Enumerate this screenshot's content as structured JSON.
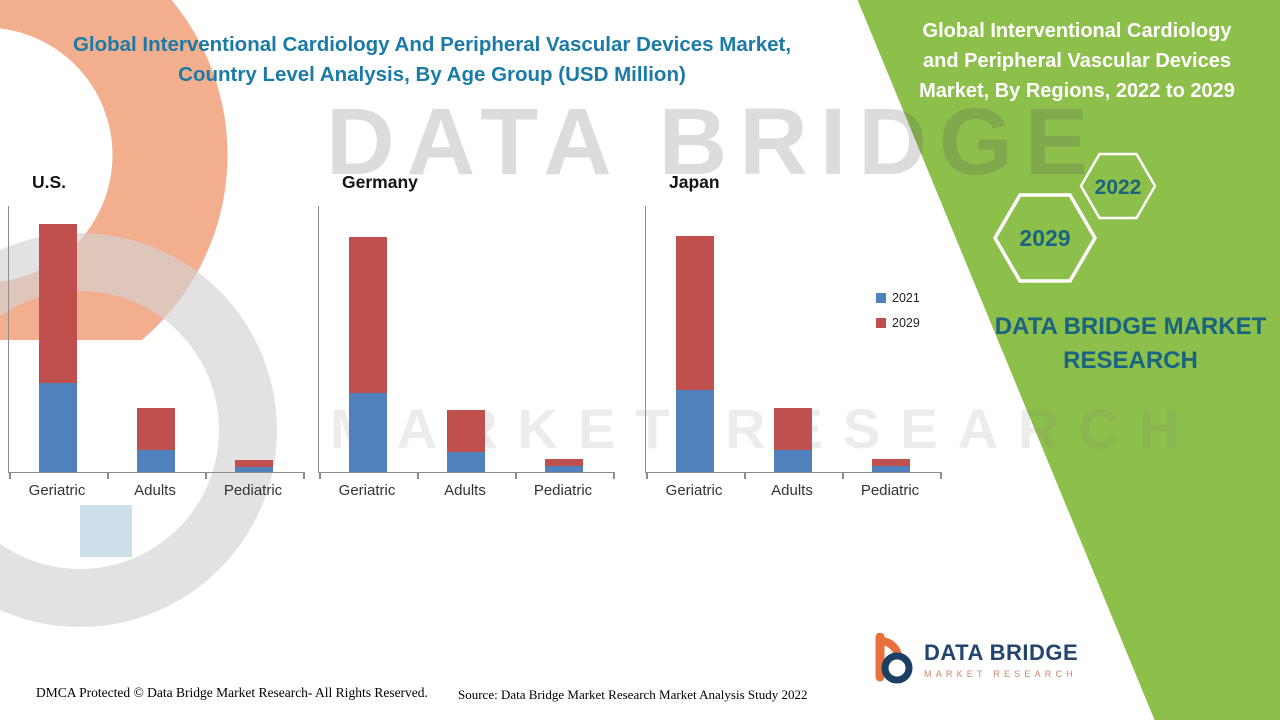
{
  "titles": {
    "left": "Global Interventional Cardiology And Peripheral Vascular Devices Market, Country Level Analysis, By Age Group (USD Million)",
    "left_lines": [
      "Global Interventional Cardiology And Peripheral Vascular Devices Market,",
      "Country Level Analysis, By Age Group (USD Million)"
    ],
    "right": "Global Interventional Cardiology and Peripheral Vascular Devices Market, By Regions, 2022 to 2029",
    "right_lines": [
      "Global Interventional Cardiology",
      "and Peripheral Vascular Devices",
      "Market, By Regions, 2022 to 2029"
    ]
  },
  "right_panel": {
    "panel_color": "#8dbf4b",
    "accent_color": "#19657f",
    "hexagons": [
      {
        "label": "2022"
      },
      {
        "label": "2029"
      }
    ],
    "brand": "DATA BRIDGE MARKET RESEARCH"
  },
  "legend": {
    "items": [
      {
        "label": "2021",
        "color": "#4f81bd"
      },
      {
        "label": "2029",
        "color": "#c0504d"
      }
    ]
  },
  "chart_data": [
    {
      "type": "bar",
      "stacked": true,
      "title": "U.S.",
      "categories": [
        "Geriatric",
        "Adults",
        "Pediatric"
      ],
      "series": [
        {
          "name": "2021",
          "color": "#4f81bd",
          "values": [
            36,
            9,
            2
          ]
        },
        {
          "name": "2029",
          "color": "#c0504d",
          "values": [
            64,
            17,
            3
          ]
        }
      ],
      "units": "USD Million",
      "xlabel": "",
      "ylabel": "",
      "axis_tick_labels_visible": false,
      "grid": false,
      "note": "Y-axis unlabeled in source; values estimated from bar heights (relative units)."
    },
    {
      "type": "bar",
      "stacked": true,
      "title": "Germany",
      "categories": [
        "Geriatric",
        "Adults",
        "Pediatric"
      ],
      "series": [
        {
          "name": "2021",
          "color": "#4f81bd",
          "values": [
            32,
            8,
            2.5
          ]
        },
        {
          "name": "2029",
          "color": "#c0504d",
          "values": [
            63,
            17,
            3
          ]
        }
      ],
      "units": "USD Million",
      "xlabel": "",
      "ylabel": "",
      "axis_tick_labels_visible": false,
      "grid": false,
      "note": "Y-axis unlabeled in source; values estimated from bar heights (relative units)."
    },
    {
      "type": "bar",
      "stacked": true,
      "title": "Japan",
      "categories": [
        "Geriatric",
        "Adults",
        "Pediatric"
      ],
      "series": [
        {
          "name": "2021",
          "color": "#4f81bd",
          "values": [
            33,
            9,
            2.5
          ]
        },
        {
          "name": "2029",
          "color": "#c0504d",
          "values": [
            62,
            17,
            3
          ]
        }
      ],
      "units": "USD Million",
      "xlabel": "",
      "ylabel": "",
      "axis_tick_labels_visible": false,
      "grid": false,
      "note": "Y-axis unlabeled in source; values estimated from bar heights (relative units)."
    }
  ],
  "watermark": {
    "line1": "DATA BRIDGE",
    "line2": "MARKET RESEARCH"
  },
  "logo": {
    "name": "DATA BRIDGE",
    "tagline": "MARKET RESEARCH"
  },
  "footer": {
    "dmca": "DMCA Protected © Data Bridge Market Research- All Rights Reserved.",
    "source": "Source: Data Bridge Market Research Market Analysis Study 2022"
  }
}
